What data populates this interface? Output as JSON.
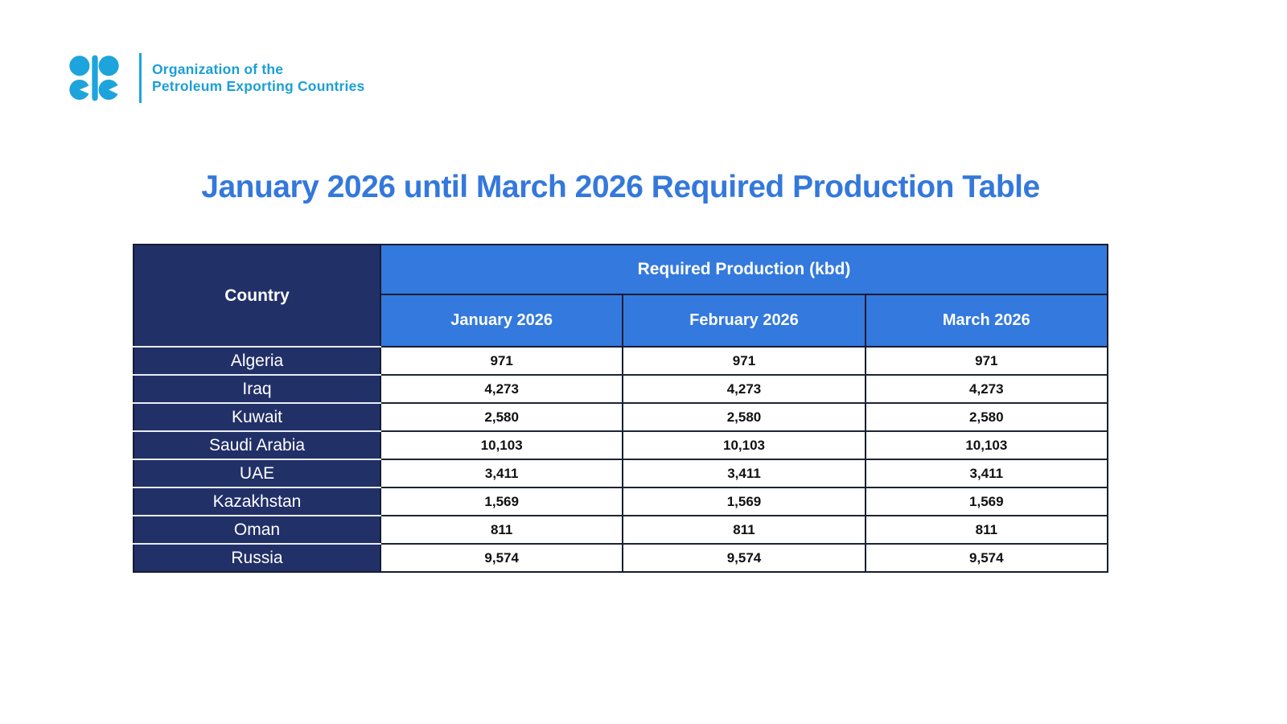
{
  "brand": {
    "org_line1": "Organization of the",
    "org_line2": "Petroleum Exporting Countries",
    "logo_color": "#1ea4dc"
  },
  "title": {
    "text": "January 2026 until March 2026 Required Production Table",
    "color": "#3478db"
  },
  "table": {
    "country_header": "Country",
    "group_header": "Required Production (kbd)",
    "month_headers": [
      "January 2026",
      "February 2026",
      "March 2026"
    ],
    "colors": {
      "header_navy": "#223068",
      "header_blue": "#3379de",
      "grid_dark": "#161c30",
      "country_separator": "#e9edf6",
      "value_text": "#111111"
    },
    "rows": [
      {
        "country": "Algeria",
        "values": [
          "971",
          "971",
          "971"
        ]
      },
      {
        "country": "Iraq",
        "values": [
          "4,273",
          "4,273",
          "4,273"
        ]
      },
      {
        "country": "Kuwait",
        "values": [
          "2,580",
          "2,580",
          "2,580"
        ]
      },
      {
        "country": "Saudi Arabia",
        "values": [
          "10,103",
          "10,103",
          "10,103"
        ]
      },
      {
        "country": "UAE",
        "values": [
          "3,411",
          "3,411",
          "3,411"
        ]
      },
      {
        "country": "Kazakhstan",
        "values": [
          "1,569",
          "1,569",
          "1,569"
        ]
      },
      {
        "country": "Oman",
        "values": [
          "811",
          "811",
          "811"
        ]
      },
      {
        "country": "Russia",
        "values": [
          "9,574",
          "9,574",
          "9,574"
        ]
      }
    ]
  }
}
